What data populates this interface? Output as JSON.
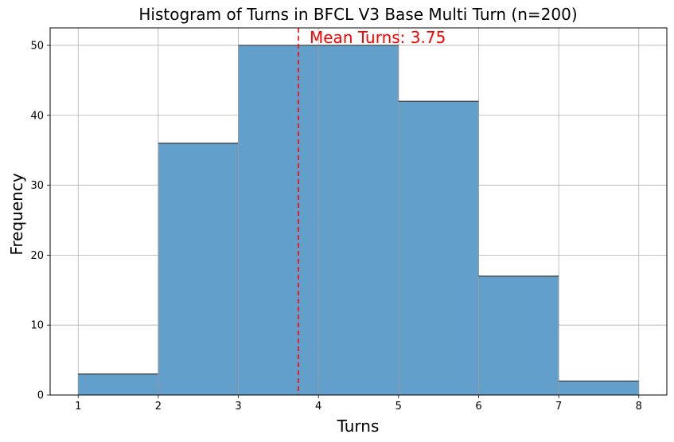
{
  "chart_data": {
    "type": "bar",
    "subtype": "histogram",
    "title": "Histogram of Turns in BFCL V3 Base Multi Turn (n=200)",
    "xlabel": "Turns",
    "ylabel": "Frequency",
    "bins": [
      {
        "start": 1,
        "end": 2,
        "value": 3
      },
      {
        "start": 2,
        "end": 3,
        "value": 36
      },
      {
        "start": 3,
        "end": 4,
        "value": 50
      },
      {
        "start": 4,
        "end": 5,
        "value": 50
      },
      {
        "start": 5,
        "end": 6,
        "value": 42
      },
      {
        "start": 6,
        "end": 7,
        "value": 17
      },
      {
        "start": 7,
        "end": 8,
        "value": 2
      }
    ],
    "xlim": [
      0.65,
      8.35
    ],
    "ylim": [
      0,
      52.5
    ],
    "xticks": [
      "1",
      "2",
      "3",
      "4",
      "5",
      "6",
      "7",
      "8"
    ],
    "yticks": [
      "0",
      "10",
      "20",
      "30",
      "40",
      "50"
    ],
    "grid": true,
    "mean_line": {
      "x": 3.75,
      "label": "Mean Turns: 3.75",
      "color": "#ff0000",
      "style": "dashed"
    },
    "bar_color": "#62a0cb",
    "bar_edge_color": "#333333"
  }
}
